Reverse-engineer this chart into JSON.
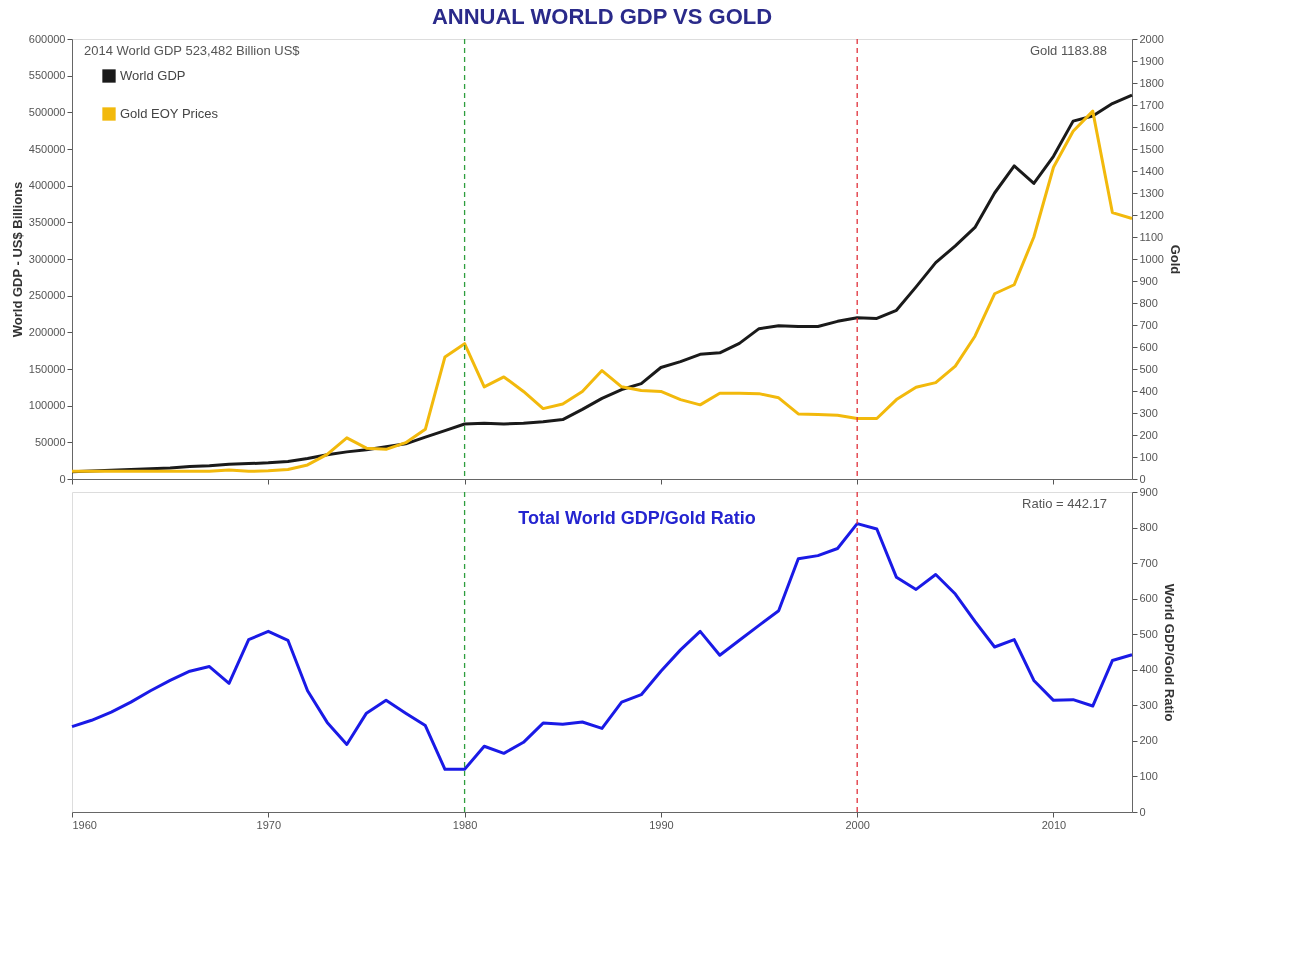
{
  "chart_data": [
    {
      "type": "line",
      "title": "ANNUAL WORLD GDP VS GOLD",
      "ylabel": "World GDP - US$ Billions",
      "y2label": "Gold",
      "x": [
        1960,
        1961,
        1962,
        1963,
        1964,
        1965,
        1966,
        1967,
        1968,
        1969,
        1970,
        1971,
        1972,
        1973,
        1974,
        1975,
        1976,
        1977,
        1978,
        1979,
        1980,
        1981,
        1982,
        1983,
        1984,
        1985,
        1986,
        1987,
        1988,
        1989,
        1990,
        1991,
        1992,
        1993,
        1994,
        1995,
        1996,
        1997,
        1998,
        1999,
        2000,
        2001,
        2002,
        2003,
        2004,
        2005,
        2006,
        2007,
        2008,
        2009,
        2010,
        2011,
        2012,
        2013,
        2014
      ],
      "series": [
        {
          "name": "World GDP",
          "color": "#1a1a1a",
          "axis": "y",
          "values": [
            10000,
            11000,
            12000,
            13000,
            14000,
            15000,
            17000,
            18000,
            20000,
            21000,
            22000,
            24000,
            28000,
            33000,
            37000,
            40000,
            44000,
            48000,
            57000,
            66000,
            75000,
            76000,
            75000,
            76000,
            78000,
            81000,
            95000,
            110000,
            122000,
            130000,
            152000,
            160000,
            170000,
            172000,
            185000,
            205000,
            209000,
            208000,
            208000,
            215000,
            220000,
            219000,
            230000,
            262000,
            295000,
            318000,
            343000,
            390000,
            427000,
            403000,
            440000,
            488000,
            495000,
            512000,
            523482
          ]
        },
        {
          "name": "Gold EOY Prices",
          "color": "#f2b90c",
          "axis": "y2",
          "values": [
            35,
            35,
            35,
            35,
            35,
            35,
            35,
            35,
            41,
            35,
            37,
            43,
            64,
            112,
            187,
            140,
            135,
            165,
            226,
            555,
            615,
            419,
            464,
            398,
            320,
            341,
            398,
            493,
            419,
            402,
            398,
            361,
            337,
            390,
            390,
            388,
            369,
            296,
            293,
            290,
            275,
            275,
            361,
            417,
            438,
            513,
            649,
            842,
            883,
            1100,
            1417,
            1581,
            1672,
            1211,
            1183.88
          ]
        }
      ],
      "xlim": [
        1960,
        2014
      ],
      "xticks": [
        1960,
        1970,
        1980,
        1990,
        2000,
        2010
      ],
      "ylim": [
        0,
        600000
      ],
      "yticks": [
        0,
        50000,
        100000,
        150000,
        200000,
        250000,
        300000,
        350000,
        400000,
        450000,
        500000,
        550000,
        600000
      ],
      "y2lim": [
        0,
        2000
      ],
      "y2ticks": [
        0,
        100,
        200,
        300,
        400,
        500,
        600,
        700,
        800,
        900,
        1000,
        1100,
        1200,
        1300,
        1400,
        1500,
        1600,
        1700,
        1800,
        1900,
        2000
      ],
      "ref_lines": [
        {
          "axis": "x",
          "value": 1980,
          "color": "#2e9e3e",
          "line_style": "dashed"
        },
        {
          "axis": "x",
          "value": 2000,
          "color": "#e0303a",
          "line_style": "dashed"
        }
      ],
      "annotations": [
        "2014 World GDP 523,482 Billion US$",
        "Gold 1183.88"
      ],
      "legend": "top left",
      "tick_labels": "y",
      "grid": false,
      "marker": "none",
      "line_style": "solid"
    },
    {
      "type": "line",
      "title": "Total World GDP/Gold Ratio",
      "ylabel": "World GDP/Gold Ratio",
      "x": [
        1960,
        1961,
        1962,
        1963,
        1964,
        1965,
        1966,
        1967,
        1968,
        1969,
        1970,
        1971,
        1972,
        1973,
        1974,
        1975,
        1976,
        1977,
        1978,
        1979,
        1980,
        1981,
        1982,
        1983,
        1984,
        1985,
        1986,
        1987,
        1988,
        1989,
        1990,
        1991,
        1992,
        1993,
        1994,
        1995,
        1996,
        1997,
        1998,
        1999,
        2000,
        2001,
        2002,
        2003,
        2004,
        2005,
        2006,
        2007,
        2008,
        2009,
        2010,
        2011,
        2012,
        2013,
        2014
      ],
      "series": [
        {
          "color": "#1a1ae6",
          "values": [
            240,
            258,
            281,
            309,
            341,
            370,
            396,
            409,
            362,
            485,
            508,
            483,
            341,
            252,
            190,
            278,
            314,
            278,
            243,
            120,
            120,
            185,
            165,
            196,
            250,
            247,
            253,
            235,
            309,
            330,
            396,
            456,
            508,
            441,
            483,
            525,
            566,
            712,
            721,
            741,
            811,
            796,
            660,
            626,
            668,
            613,
            536,
            464,
            485,
            370,
            314,
            316,
            298,
            426,
            442.17
          ]
        }
      ],
      "xlim": [
        1960,
        2014
      ],
      "xticks": [
        1960,
        1970,
        1980,
        1990,
        2000,
        2010
      ],
      "ylim": [
        0,
        900
      ],
      "yticks": [
        0,
        100,
        200,
        300,
        400,
        500,
        600,
        700,
        800,
        900
      ],
      "ref_lines": [
        {
          "axis": "x",
          "value": 1980,
          "color": "#2e9e3e",
          "line_style": "dashed"
        },
        {
          "axis": "x",
          "value": 2000,
          "color": "#e0303a",
          "line_style": "dashed"
        }
      ],
      "annotations": [
        "Ratio = 442.17"
      ],
      "legend": false,
      "grid": false,
      "marker": "none",
      "line_style": "solid"
    }
  ]
}
